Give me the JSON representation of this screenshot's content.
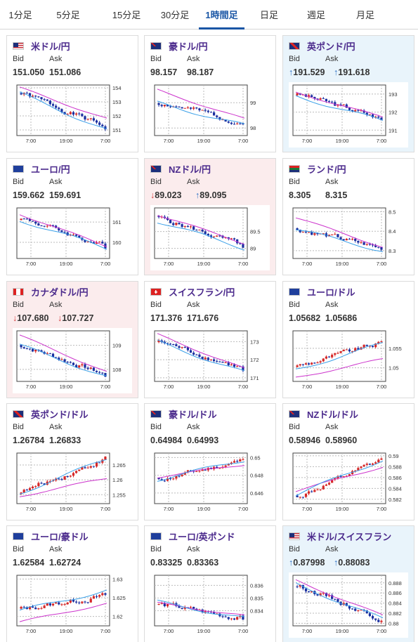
{
  "tabs": [
    "1分足",
    "5分足",
    "15分足",
    "30分足",
    "1時間足",
    "日足",
    "週足",
    "月足"
  ],
  "active_tab": "1時間足",
  "labels": {
    "bid": "Bid",
    "ask": "Ask"
  },
  "colors": {
    "accent": "#1a56a5",
    "pair_name": "#4b2a8c",
    "up_arrow": "#2a6fc4",
    "down_arrow": "#d43a3a",
    "candle_up": "#d62828",
    "candle_down": "#1b2fa0",
    "ma_long": "#cc33cc",
    "ma_short": "#3aa0e8"
  },
  "cards": [
    {
      "pair": "米ドル/円",
      "flag": "us-flag",
      "bg": "white",
      "bid": "151.050",
      "ask": "151.086",
      "bid_dir": "",
      "ask_dir": "",
      "chart": {
        "type": "candlestick",
        "yticks": [
          "154",
          "153",
          "152",
          "151"
        ],
        "ymin": 150.6,
        "ymax": 154.2,
        "xticks": [
          "7:00",
          "19:00",
          "7:00"
        ],
        "start": 153.6,
        "end": 151.05,
        "ma_long": [
          154.0,
          151.8
        ],
        "ma_short": [
          153.6,
          151.0
        ],
        "trend": "down",
        "seed": 1
      }
    },
    {
      "pair": "豪ドル/円",
      "flag": "au-flag",
      "bg": "white",
      "bid": "98.157",
      "ask": "98.187",
      "bid_dir": "",
      "ask_dir": "",
      "chart": {
        "type": "candlestick",
        "yticks": [
          "99",
          "98"
        ],
        "ymin": 97.7,
        "ymax": 99.7,
        "xticks": [
          "7:00",
          "19:00",
          "7:00"
        ],
        "start": 99.0,
        "end": 98.16,
        "ma_long": [
          99.5,
          98.35
        ],
        "ma_short": [
          99.0,
          98.1
        ],
        "trend": "down",
        "seed": 2
      }
    },
    {
      "pair": "英ポンド/円",
      "flag": "uk-flag",
      "bg": "blue",
      "bid": "191.529",
      "ask": "191.618",
      "bid_dir": "up",
      "ask_dir": "up",
      "chart": {
        "type": "candlestick",
        "yticks": [
          "193",
          "192",
          "191"
        ],
        "ymin": 190.7,
        "ymax": 193.5,
        "xticks": [
          "7:00",
          "19:00",
          "7:00"
        ],
        "start": 193.0,
        "end": 191.55,
        "ma_long": [
          193.1,
          191.7
        ],
        "ma_short": [
          192.9,
          191.5
        ],
        "trend": "down",
        "seed": 3
      }
    },
    {
      "pair": "ユーロ/円",
      "flag": "eu-flag",
      "bg": "white",
      "bid": "159.662",
      "ask": "159.691",
      "bid_dir": "",
      "ask_dir": "",
      "chart": {
        "type": "candlestick",
        "yticks": [
          "161",
          "160"
        ],
        "ymin": 159.2,
        "ymax": 161.7,
        "xticks": [
          "7:00",
          "19:00",
          "7:00"
        ],
        "start": 161.2,
        "end": 159.7,
        "ma_long": [
          161.4,
          159.8
        ],
        "ma_short": [
          161.1,
          159.7
        ],
        "trend": "down",
        "seed": 4
      }
    },
    {
      "pair": "NZドル/円",
      "flag": "nz-flag",
      "bg": "pink",
      "bid": "89.023",
      "ask": "89.095",
      "bid_dir": "down",
      "ask_dir": "up",
      "chart": {
        "type": "candlestick",
        "yticks": [
          "89.5",
          "89"
        ],
        "ymin": 88.7,
        "ymax": 90.2,
        "xticks": [
          "7:00",
          "19:00",
          "7:00"
        ],
        "start": 89.9,
        "end": 89.02,
        "ma_long": [
          90.0,
          89.15
        ],
        "ma_short": [
          89.8,
          89.0
        ],
        "trend": "down",
        "seed": 5
      }
    },
    {
      "pair": "ランド/円",
      "flag": "za-flag",
      "bg": "white",
      "bid": "8.305",
      "ask": "8.315",
      "bid_dir": "",
      "ask_dir": "",
      "chart": {
        "type": "candlestick",
        "yticks": [
          "8.5",
          "8.4",
          "8.3"
        ],
        "ymin": 8.26,
        "ymax": 8.52,
        "xticks": [
          "7:00",
          "19:00",
          "7:00"
        ],
        "start": 8.41,
        "end": 8.305,
        "ma_long": [
          8.47,
          8.32
        ],
        "ma_short": [
          8.41,
          8.3
        ],
        "trend": "down",
        "seed": 6
      }
    },
    {
      "pair": "カナダドル/円",
      "flag": "ca-flag",
      "bg": "pink",
      "bid": "107.680",
      "ask": "107.727",
      "bid_dir": "down",
      "ask_dir": "down",
      "chart": {
        "type": "candlestick",
        "yticks": [
          "109",
          "108"
        ],
        "ymin": 107.5,
        "ymax": 109.6,
        "xticks": [
          "7:00",
          "19:00",
          "7:00"
        ],
        "start": 109.0,
        "end": 107.7,
        "ma_long": [
          109.4,
          107.9
        ],
        "ma_short": [
          109.0,
          107.7
        ],
        "trend": "down",
        "seed": 7
      }
    },
    {
      "pair": "スイスフラン/円",
      "flag": "ch-flag",
      "bg": "white",
      "bid": "171.376",
      "ask": "171.676",
      "bid_dir": "",
      "ask_dir": "",
      "chart": {
        "type": "candlestick",
        "yticks": [
          "173",
          "172",
          "171"
        ],
        "ymin": 170.8,
        "ymax": 173.6,
        "xticks": [
          "7:00",
          "19:00",
          "7:00"
        ],
        "start": 173.0,
        "end": 171.4,
        "ma_long": [
          173.4,
          171.5
        ],
        "ma_short": [
          173.0,
          171.3
        ],
        "trend": "down",
        "seed": 8
      }
    },
    {
      "pair": "ユーロ/ドル",
      "flag": "eu-us-flag",
      "bg": "white",
      "bid": "1.05682",
      "ask": "1.05686",
      "bid_dir": "",
      "ask_dir": "",
      "chart": {
        "type": "candlestick",
        "yticks": [
          "1.055",
          "1.05"
        ],
        "ymin": 1.0465,
        "ymax": 1.0595,
        "xticks": [
          "7:00",
          "19:00",
          "7:00"
        ],
        "start": 1.0505,
        "end": 1.0568,
        "ma_long": [
          1.0475,
          1.0522
        ],
        "ma_short": [
          1.0495,
          1.0562
        ],
        "trend": "up",
        "seed": 9
      }
    },
    {
      "pair": "英ポンド/ドル",
      "flag": "uk-us-flag",
      "bg": "white",
      "bid": "1.26784",
      "ask": "1.26833",
      "bid_dir": "",
      "ask_dir": "",
      "chart": {
        "type": "candlestick",
        "yticks": [
          "1.265",
          "1.26",
          "1.255"
        ],
        "ymin": 1.252,
        "ymax": 1.269,
        "xticks": [
          "7:00",
          "19:00",
          "7:00"
        ],
        "start": 1.256,
        "end": 1.2678,
        "ma_long": [
          1.2545,
          1.2605
        ],
        "ma_short": [
          1.2555,
          1.267
        ],
        "trend": "up",
        "seed": 10
      }
    },
    {
      "pair": "豪ドル/ドル",
      "flag": "au-us-flag",
      "bg": "white",
      "bid": "0.64984",
      "ask": "0.64993",
      "bid_dir": "",
      "ask_dir": "",
      "chart": {
        "type": "candlestick",
        "yticks": [
          "0.65",
          "0.648",
          "0.646"
        ],
        "ymin": 0.6448,
        "ymax": 0.6505,
        "xticks": [
          "7:00",
          "19:00",
          "7:00"
        ],
        "start": 0.6475,
        "end": 0.6498,
        "ma_long": [
          0.6478,
          0.6492
        ],
        "ma_short": [
          0.6475,
          0.6497
        ],
        "trend": "up",
        "seed": 11
      }
    },
    {
      "pair": "NZドル/ドル",
      "flag": "nz-us-flag",
      "bg": "white",
      "bid": "0.58946",
      "ask": "0.58960",
      "bid_dir": "",
      "ask_dir": "",
      "chart": {
        "type": "candlestick",
        "yticks": [
          "0.59",
          "0.588",
          "0.586",
          "0.584",
          "0.582"
        ],
        "ymin": 0.5812,
        "ymax": 0.5905,
        "xticks": [
          "7:00",
          "19:00",
          "7:00"
        ],
        "start": 0.5825,
        "end": 0.5895,
        "ma_long": [
          0.5835,
          0.588
        ],
        "ma_short": [
          0.5828,
          0.5893
        ],
        "trend": "up",
        "seed": 12
      }
    },
    {
      "pair": "ユーロ/豪ドル",
      "flag": "eu-au-flag",
      "bg": "white",
      "bid": "1.62584",
      "ask": "1.62724",
      "bid_dir": "",
      "ask_dir": "",
      "chart": {
        "type": "candlestick",
        "yticks": [
          "1.63",
          "1.625",
          "1.62"
        ],
        "ymin": 1.6175,
        "ymax": 1.631,
        "xticks": [
          "7:00",
          "19:00",
          "7:00"
        ],
        "start": 1.622,
        "end": 1.6258,
        "ma_long": [
          1.6185,
          1.6235
        ],
        "ma_short": [
          1.6215,
          1.627
        ],
        "trend": "up",
        "seed": 13
      }
    },
    {
      "pair": "ユーロ/英ポンド",
      "flag": "eu-uk-flag",
      "bg": "white",
      "bid": "0.83325",
      "ask": "0.83363",
      "bid_dir": "",
      "ask_dir": "",
      "chart": {
        "type": "candlestick",
        "yticks": [
          "0.836",
          "0.835",
          "0.834"
        ],
        "ymin": 0.8328,
        "ymax": 0.8368,
        "xticks": [
          "7:00",
          "19:00",
          "7:00"
        ],
        "start": 0.8345,
        "end": 0.8333,
        "ma_long": [
          0.8346,
          0.8336
        ],
        "ma_short": [
          0.8347,
          0.8334
        ],
        "trend": "flat",
        "seed": 14
      }
    },
    {
      "pair": "米ドル/スイスフラン",
      "flag": "us-ch-flag",
      "bg": "blue",
      "bid": "0.87998",
      "ask": "0.88083",
      "bid_dir": "up",
      "ask_dir": "up",
      "chart": {
        "type": "candlestick",
        "yticks": [
          "0.888",
          "0.886",
          "0.884",
          "0.882",
          "0.88"
        ],
        "ymin": 0.8795,
        "ymax": 0.8895,
        "xticks": [
          "7:00",
          "19:00",
          "7:00"
        ],
        "start": 0.8875,
        "end": 0.8805,
        "ma_long": [
          0.8885,
          0.8815
        ],
        "ma_short": [
          0.8878,
          0.8808
        ],
        "trend": "down",
        "seed": 15
      }
    }
  ]
}
